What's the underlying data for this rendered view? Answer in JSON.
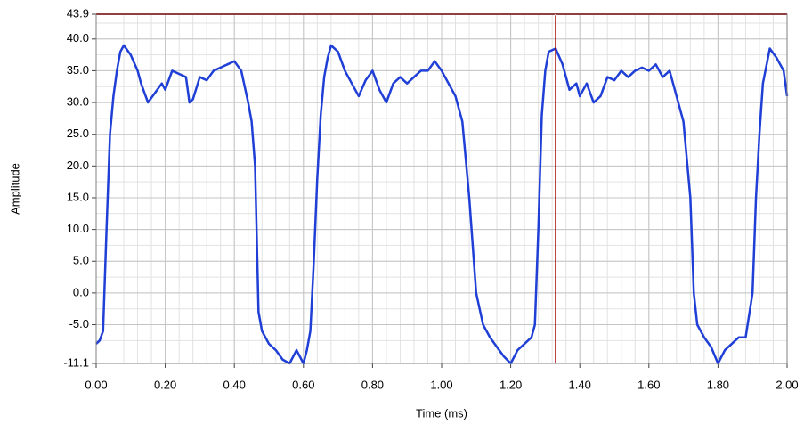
{
  "chart_data": {
    "type": "line",
    "x_label": "Time (ms)",
    "y_label": "Amplitude",
    "color": "#1f3fd6",
    "x": [
      0.0,
      0.01,
      0.02,
      0.03,
      0.04,
      0.05,
      0.06,
      0.07,
      0.08,
      0.1,
      0.12,
      0.13,
      0.15,
      0.17,
      0.19,
      0.2,
      0.22,
      0.24,
      0.26,
      0.27,
      0.28,
      0.3,
      0.32,
      0.34,
      0.36,
      0.38,
      0.4,
      0.42,
      0.44,
      0.45,
      0.46,
      0.47,
      0.48,
      0.5,
      0.52,
      0.54,
      0.56,
      0.58,
      0.6,
      0.61,
      0.62,
      0.63,
      0.64,
      0.65,
      0.66,
      0.67,
      0.68,
      0.7,
      0.72,
      0.74,
      0.76,
      0.78,
      0.8,
      0.82,
      0.84,
      0.86,
      0.88,
      0.9,
      0.92,
      0.94,
      0.96,
      0.98,
      1.0,
      1.02,
      1.04,
      1.06,
      1.08,
      1.1,
      1.12,
      1.14,
      1.16,
      1.18,
      1.2,
      1.22,
      1.24,
      1.26,
      1.27,
      1.28,
      1.29,
      1.3,
      1.31,
      1.33,
      1.35,
      1.37,
      1.39,
      1.4,
      1.42,
      1.44,
      1.46,
      1.48,
      1.5,
      1.52,
      1.54,
      1.56,
      1.58,
      1.6,
      1.62,
      1.64,
      1.66,
      1.68,
      1.7,
      1.72,
      1.73,
      1.74,
      1.76,
      1.78,
      1.8,
      1.82,
      1.84,
      1.86,
      1.88,
      1.9,
      1.91,
      1.92,
      1.93,
      1.95,
      1.97,
      1.99,
      2.0
    ],
    "values": [
      -8,
      -7.5,
      -6,
      10,
      25,
      31,
      35,
      38,
      39,
      37.5,
      35,
      33,
      30,
      31.5,
      33,
      32,
      35,
      34.5,
      34,
      30,
      30.5,
      34,
      33.5,
      35,
      35.5,
      36,
      36.5,
      35,
      30,
      27,
      20,
      -3,
      -6,
      -8,
      -9,
      -10.5,
      -11.1,
      -9,
      -11.1,
      -9,
      -6,
      5,
      18,
      28,
      34,
      37,
      39,
      38,
      35,
      33,
      31,
      33.5,
      35,
      32,
      30,
      33,
      34,
      33,
      34,
      35,
      35,
      36.5,
      35,
      33,
      31,
      27,
      15,
      0,
      -5,
      -7,
      -8.5,
      -10,
      -11.1,
      -9,
      -8,
      -7,
      -5,
      10,
      28,
      35,
      38,
      38.5,
      36,
      32,
      33,
      31,
      33,
      30,
      31,
      34,
      33.5,
      35,
      34,
      35,
      35.5,
      35,
      36,
      34,
      35,
      31,
      27,
      15,
      0,
      -5,
      -7,
      -8.5,
      -11.1,
      -9,
      -8,
      -7,
      -7,
      0,
      15,
      25,
      33,
      38.5,
      37,
      35,
      31
    ],
    "xlim": [
      0,
      2
    ],
    "xticks": [
      {
        "value": 0,
        "label": "0.00"
      },
      {
        "value": 0.2,
        "label": "0.20"
      },
      {
        "value": 0.4,
        "label": "0.40"
      },
      {
        "value": 0.6,
        "label": "0.60"
      },
      {
        "value": 0.8,
        "label": "0.80"
      },
      {
        "value": 1,
        "label": "1.00"
      },
      {
        "value": 1.2,
        "label": "1.20"
      },
      {
        "value": 1.4,
        "label": "1.40"
      },
      {
        "value": 1.6,
        "label": "1.60"
      },
      {
        "value": 1.8,
        "label": "1.80"
      },
      {
        "value": 2,
        "label": "2.00"
      }
    ],
    "ylim": [
      -11.1,
      43.9
    ],
    "yticks": [
      -11.1,
      {
        "value": -5,
        "label": "-5.0"
      },
      {
        "value": 0,
        "label": "0.0"
      },
      {
        "value": 5,
        "label": "5.0"
      },
      {
        "value": 10,
        "label": "10.0"
      },
      {
        "value": 15,
        "label": "15.0"
      },
      {
        "value": 20,
        "label": "20.0"
      },
      {
        "value": 25,
        "label": "25.0"
      },
      {
        "value": 30,
        "label": "30.0"
      },
      {
        "value": 35,
        "label": "35.0"
      },
      {
        "value": 40,
        "label": "40.0"
      },
      43.9
    ],
    "grid": true,
    "cursor": {
      "x": 1.33,
      "y": 43.9,
      "color": "#a00000"
    }
  }
}
